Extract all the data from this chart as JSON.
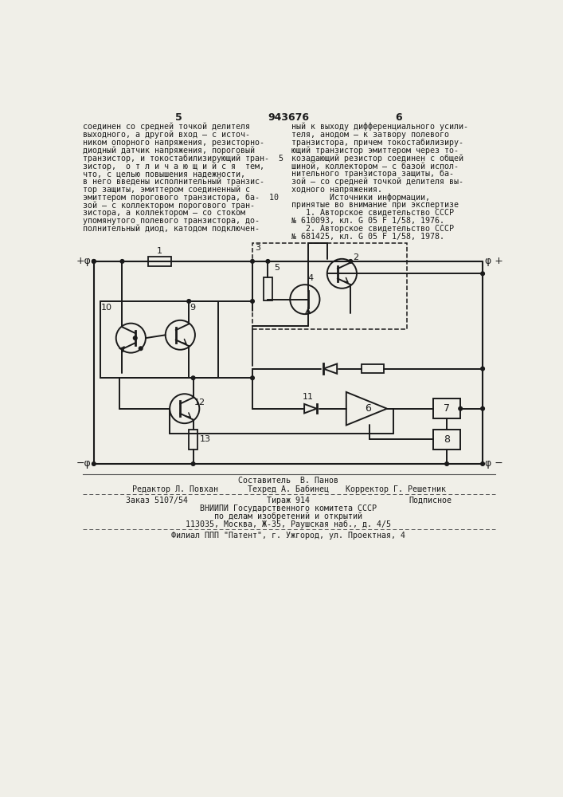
{
  "page_number_center": "943676",
  "page_number_left": "5",
  "page_number_right": "6",
  "bg_color": "#f0efe8",
  "text_color": "#1a1a1a",
  "body_font_size": 7.2,
  "text_left": [
    "соединен со средней точкой делителя",
    "выходного, а другой вход – с источ-",
    "ником опорного напряжения, резисторно-",
    "диодный датчик напряжения, пороговый",
    "транзистор, и токостабилизирующий тран-  5",
    "зистор,  о т л и ч а ю щ и й с я  тем,",
    "что, с целью повышения надежности,",
    "в него введены исполнительный транзис-",
    "тор защиты, эмиттером соединенный с",
    "эмиттером порогового транзистора, ба-  10",
    "зой – с коллектором порогового тран-",
    "зистора, а коллектором – со стоком",
    "упомянутого полевого транзистора, до-",
    "полнительный диод, катодом подключен-"
  ],
  "text_right": [
    "ный к выходу дифференциального усили-",
    "теля, анодом – к затвору полевого",
    "транзистора, причем токостабилизиру-",
    "ющий транзистор эмиттером через то-",
    "козадающий резистор соединен с общей",
    "шиной, коллектором – с базой испол-",
    "нительного транзистора защиты, ба-",
    "зой – со средней точкой делителя вы-",
    "ходного напряжения.",
    "        Источники информации,",
    "принятые во внимание при экспертизе",
    "   1. Авторское свидетельство СССР",
    "№ 610093, кл. G 05 F 1/58, 1976.",
    "   2. Авторское свидетельство СССР",
    "№ 681425, кл. G 05 F 1/58, 1978."
  ],
  "footer_line0": "Составитель  В. Панов",
  "footer_line1_left": "Редактор Л. Повхан",
  "footer_line1_mid": "Техред А. Бабинец",
  "footer_line1_right": "Корректор Г. Решетник",
  "footer_line3_left": "Заказ 5107/54",
  "footer_line3_mid": "Тираж 914",
  "footer_line3_right": "Подписное",
  "footer_line4": "ВНИИПИ Государственного комитета СССР",
  "footer_line5": "по делам изобретений и открытий",
  "footer_line6": "113035, Москва, Ж-35, Раушская наб., д. 4/5",
  "footer_last": "Филиал ППП \"Патент\", г. Ужгород, ул. Проектная, 4"
}
